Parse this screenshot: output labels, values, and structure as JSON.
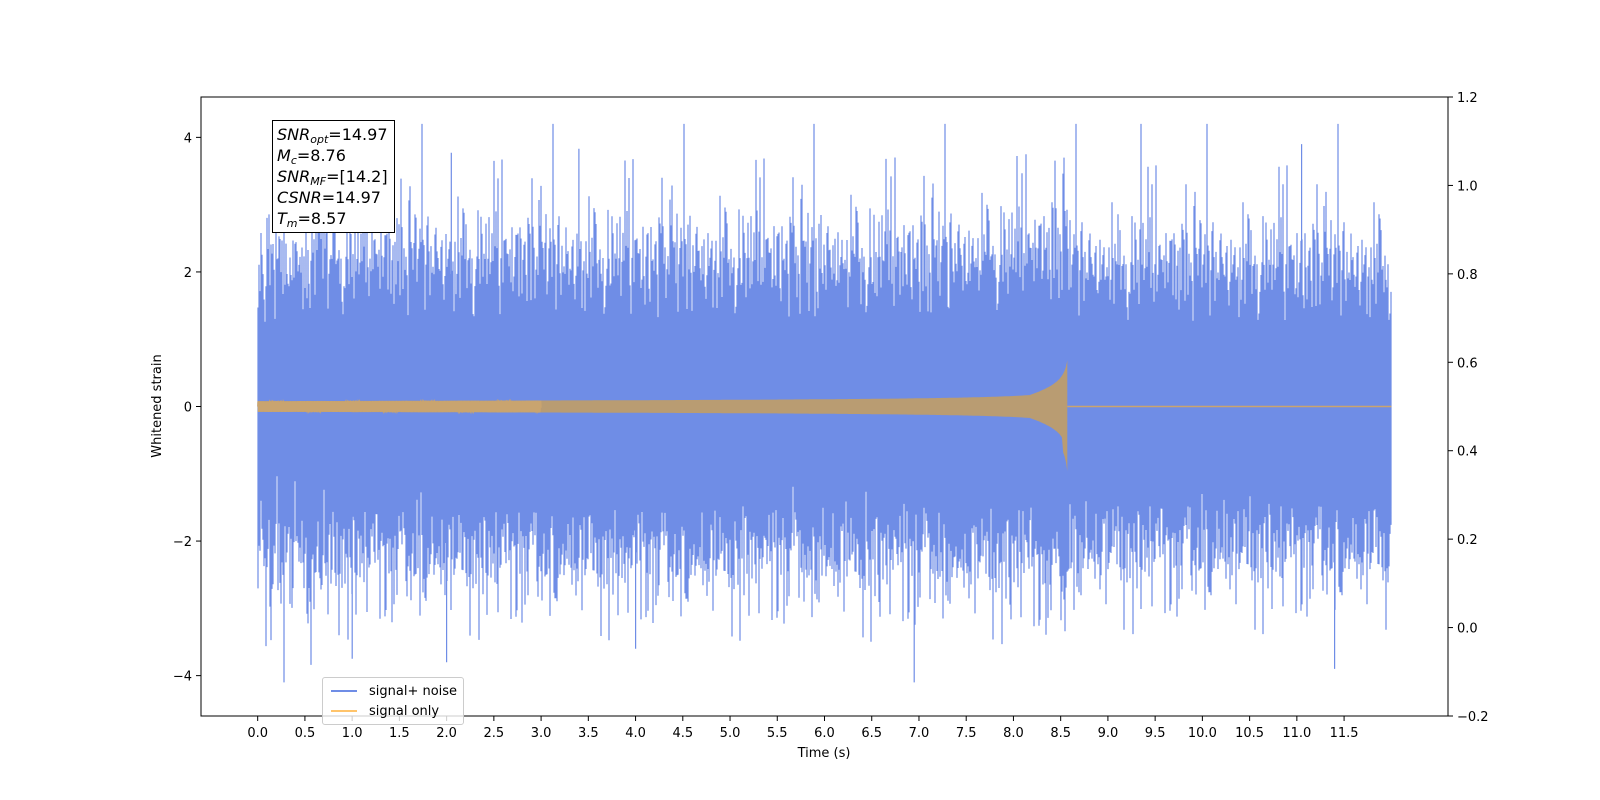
{
  "chart_data": {
    "type": "line",
    "xlabel": "Time (s)",
    "ylabel": "Whitened strain",
    "xlim": [
      -0.6,
      12.6
    ],
    "ylim": [
      -4.6,
      4.6
    ],
    "y2lim": [
      -0.2,
      1.2
    ],
    "x_ticks": [
      "0.0",
      "0.5",
      "1.0",
      "1.5",
      "2.0",
      "2.5",
      "3.0",
      "3.5",
      "4.0",
      "4.5",
      "5.0",
      "5.5",
      "6.0",
      "6.5",
      "7.0",
      "7.5",
      "8.0",
      "8.5",
      "9.0",
      "9.5",
      "10.0",
      "10.5",
      "11.0",
      "11.5"
    ],
    "y_ticks": [
      "−4",
      "−2",
      "0",
      "2",
      "4"
    ],
    "y2_ticks": [
      "−0.2",
      "0.0",
      "0.2",
      "0.4",
      "0.6",
      "0.8",
      "1.0",
      "1.2"
    ],
    "duration": 12.0,
    "merger_time": 8.57,
    "series": [
      {
        "name": "signal+ noise",
        "color": "#6f8de6",
        "description_values": {
          "noise_sigma": 1.0,
          "peak_max": 4.2,
          "peak_min": -4.1
        }
      },
      {
        "name": "signal only",
        "color": "#ffc46b",
        "description_values": {
          "amplitude_at_start": 0.08,
          "amplitude_at_merger": 1.7
        }
      }
    ],
    "annotation": {
      "snr_opt": {
        "label": "SNR",
        "sub": "opt",
        "value": "=14.97"
      },
      "mc": {
        "label": "M",
        "sub": "c",
        "value": "=8.76"
      },
      "snr_mf": {
        "label": "SNR",
        "sub": "MF",
        "value": "=[14.2]"
      },
      "csnr": {
        "label": "CSNR",
        "value": "=14.97"
      },
      "tm": {
        "label": "T",
        "sub": "m",
        "value": "=8.57"
      }
    },
    "legend_position": "lower-left"
  }
}
